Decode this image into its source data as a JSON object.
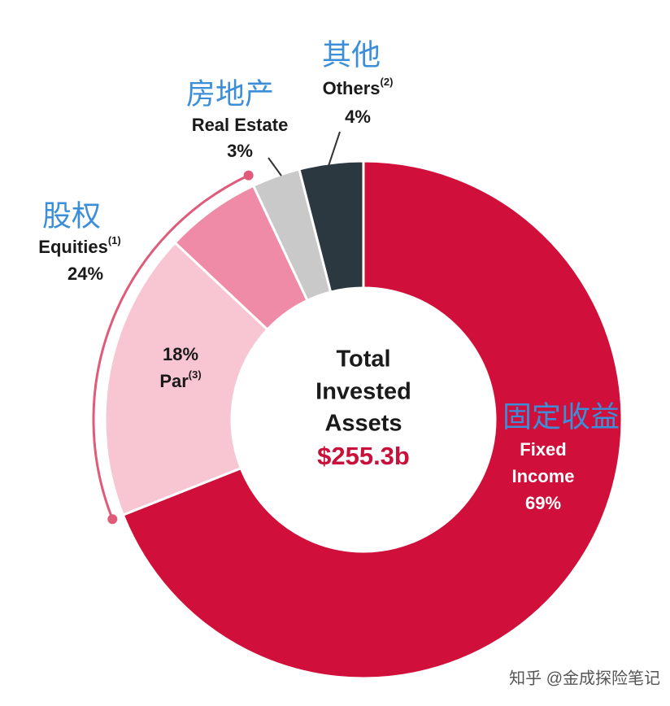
{
  "chart_data": {
    "type": "donut",
    "center_lines": [
      "Total",
      "Invested",
      "Assets"
    ],
    "center_value": "$255.3b",
    "categories": [
      "Fixed Income",
      "Par",
      null,
      "Real Estate",
      "Others"
    ],
    "chinese_labels": [
      "固定收益",
      null,
      null,
      "房地产",
      "其他"
    ],
    "footnotes": [
      null,
      "(3)",
      null,
      null,
      "(2)"
    ],
    "values": [
      69,
      18,
      6,
      3,
      4
    ],
    "value_labels": [
      "69%",
      "18%",
      null,
      "3%",
      "4%"
    ],
    "colors": [
      "#d0103a",
      "#f8c6d2",
      "#ef8ba6",
      "#c9c9c9",
      "#2b3840"
    ],
    "groups": [
      {
        "name": "Equities",
        "chinese_label": "股权",
        "footnote": "(1)",
        "value": 24,
        "value_label": "24%",
        "color": "#e05a7a"
      }
    ],
    "watermark": "知乎 @金成探险笔记"
  }
}
